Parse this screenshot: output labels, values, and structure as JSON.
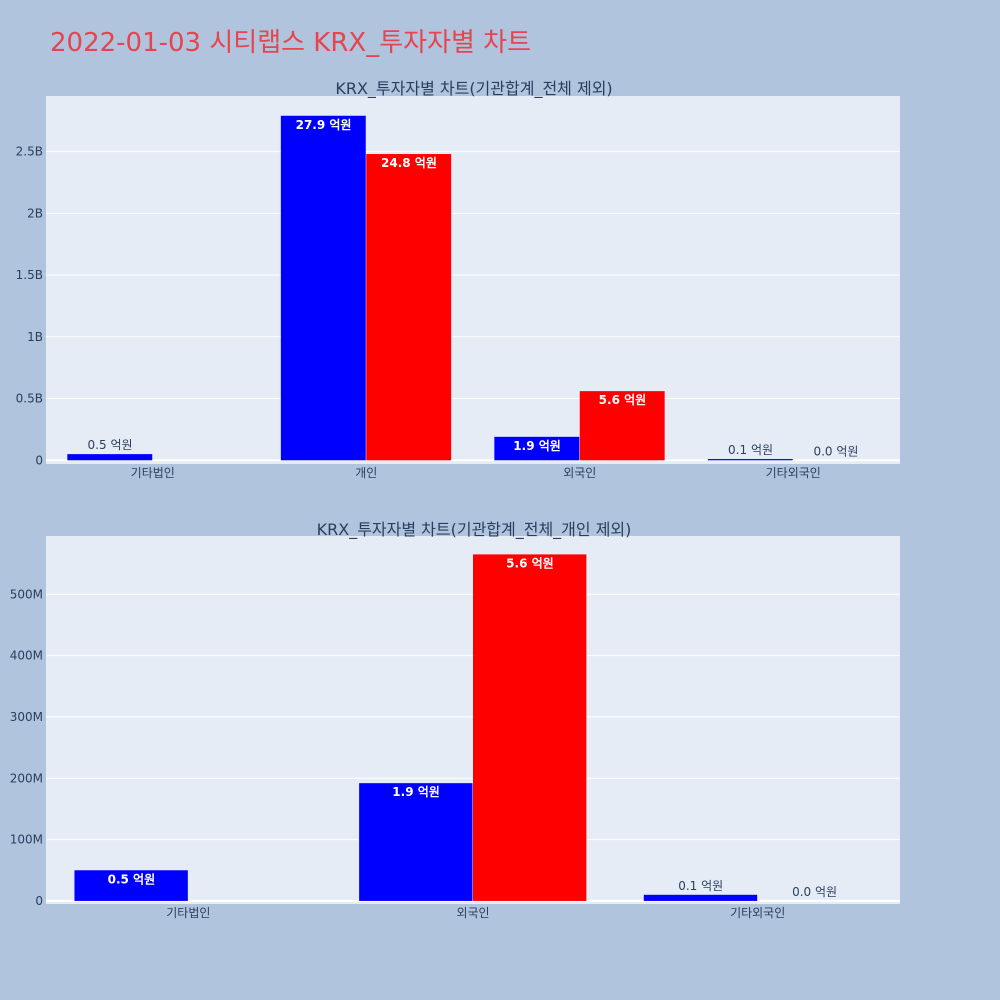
{
  "page": {
    "title": "2022-01-03 시티랩스 KRX_투자자별 차트",
    "background": "#b0c4de",
    "title_color": "#e8434f"
  },
  "chart_data": [
    {
      "type": "bar",
      "title": "KRX_투자자별 차트(기관합계_전체 제외)",
      "categories": [
        "기타법인",
        "개인",
        "외국인",
        "기타외국인"
      ],
      "series": [
        {
          "color": "#0000ff",
          "values": [
            50000000,
            2790000000,
            190000000,
            10000000
          ],
          "labels": [
            "0.5 억원",
            "27.9 억원",
            "1.9 억원",
            "0.1 억원"
          ]
        },
        {
          "color": "#ff0000",
          "values": [
            0,
            2480000000,
            560000000,
            0
          ],
          "labels": [
            "",
            "24.8 억원",
            "5.6 억원",
            "0.0 억원"
          ]
        }
      ],
      "yticks": [
        {
          "value": 0,
          "label": "0"
        },
        {
          "value": 500000000,
          "label": "0.5B"
        },
        {
          "value": 1000000000,
          "label": "1B"
        },
        {
          "value": 1500000000,
          "label": "1.5B"
        },
        {
          "value": 2000000000,
          "label": "2B"
        },
        {
          "value": 2500000000,
          "label": "2.5B"
        }
      ],
      "ylim": [
        -30000000,
        2950000000
      ],
      "grid": true,
      "plot_bg": "#e5ecf6"
    },
    {
      "type": "bar",
      "title": "KRX_투자자별 차트(기관합계_전체_개인 제외)",
      "categories": [
        "기타법인",
        "외국인",
        "기타외국인"
      ],
      "series": [
        {
          "color": "#0000ff",
          "values": [
            50000000,
            192000000,
            10000000
          ],
          "labels": [
            "0.5 억원",
            "1.9 억원",
            "0.1 억원"
          ]
        },
        {
          "color": "#ff0000",
          "values": [
            0,
            565000000,
            0
          ],
          "labels": [
            "",
            "5.6 억원",
            "0.0 억원"
          ]
        }
      ],
      "yticks": [
        {
          "value": 0,
          "label": "0"
        },
        {
          "value": 100000000,
          "label": "100M"
        },
        {
          "value": 200000000,
          "label": "200M"
        },
        {
          "value": 300000000,
          "label": "300M"
        },
        {
          "value": 400000000,
          "label": "400M"
        },
        {
          "value": 500000000,
          "label": "500M"
        }
      ],
      "ylim": [
        -5000000,
        595000000
      ],
      "grid": true,
      "plot_bg": "#e5ecf6"
    }
  ]
}
